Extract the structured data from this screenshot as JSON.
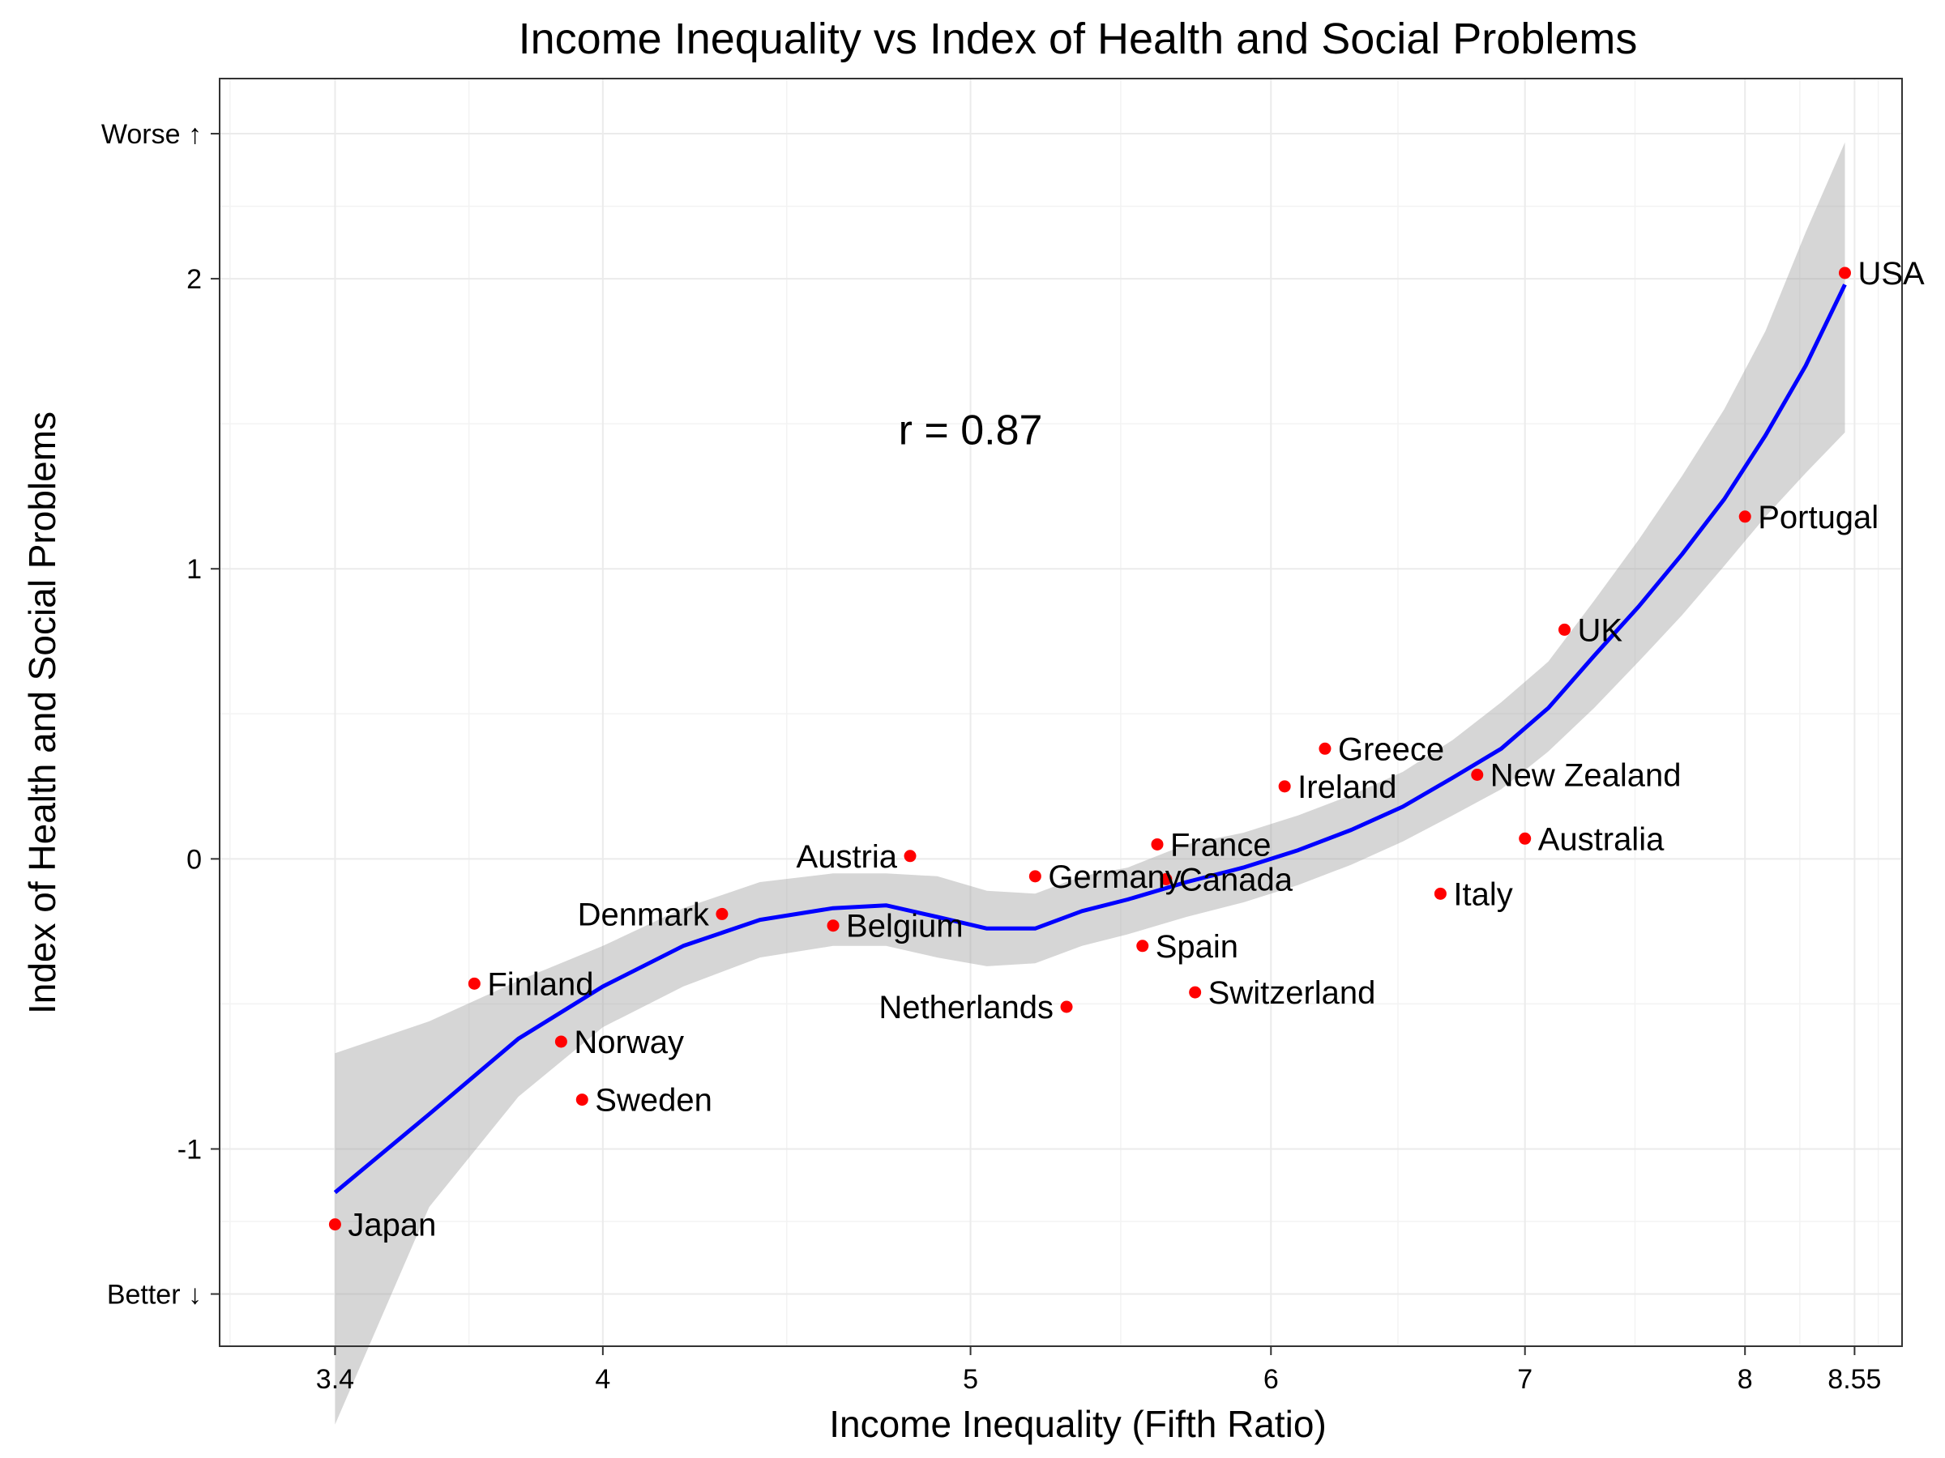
{
  "chart_data": {
    "type": "scatter",
    "title": "Income Inequality vs Index of Health and Social Problems",
    "xlabel": "Income Inequality (Fifth Ratio)",
    "ylabel": "Index of Health and Social Problems",
    "xlim": [
      3.17,
      8.8
    ],
    "ylim": [
      -1.68,
      2.69
    ],
    "x_scale": "log",
    "x_ticks": [
      {
        "value": 3.4,
        "label": "3.4"
      },
      {
        "value": 4,
        "label": "4"
      },
      {
        "value": 5,
        "label": "5"
      },
      {
        "value": 6,
        "label": "6"
      },
      {
        "value": 7,
        "label": "7"
      },
      {
        "value": 8,
        "label": "8"
      },
      {
        "value": 8.55,
        "label": "8.55"
      }
    ],
    "y_ticks": [
      {
        "value": -1.5,
        "label": "Better ↓"
      },
      {
        "value": -1,
        "label": "-1"
      },
      {
        "value": 0,
        "label": "0"
      },
      {
        "value": 1,
        "label": "1"
      },
      {
        "value": 2,
        "label": "2"
      },
      {
        "value": 2.5,
        "label": "Worse ↑"
      }
    ],
    "grid": true,
    "point_color": "#ff0000",
    "points": [
      {
        "label": "Japan",
        "x": 3.4,
        "y": -1.26,
        "anchor": "start"
      },
      {
        "label": "Finland",
        "x": 3.7,
        "y": -0.43,
        "anchor": "start"
      },
      {
        "label": "Norway",
        "x": 3.9,
        "y": -0.63,
        "anchor": "start"
      },
      {
        "label": "Sweden",
        "x": 3.95,
        "y": -0.83,
        "anchor": "start"
      },
      {
        "label": "Denmark",
        "x": 4.3,
        "y": -0.19,
        "anchor": "end"
      },
      {
        "label": "Belgium",
        "x": 4.6,
        "y": -0.23,
        "anchor": "start"
      },
      {
        "label": "Austria",
        "x": 4.82,
        "y": 0.01,
        "anchor": "end"
      },
      {
        "label": "Germany",
        "x": 5.2,
        "y": -0.06,
        "anchor": "start"
      },
      {
        "label": "Netherlands",
        "x": 5.3,
        "y": -0.51,
        "anchor": "end"
      },
      {
        "label": "Spain",
        "x": 5.55,
        "y": -0.3,
        "anchor": "start"
      },
      {
        "label": "France",
        "x": 5.6,
        "y": 0.05,
        "anchor": "start"
      },
      {
        "label": "Canada",
        "x": 5.63,
        "y": -0.07,
        "anchor": "start"
      },
      {
        "label": "Switzerland",
        "x": 5.73,
        "y": -0.46,
        "anchor": "start"
      },
      {
        "label": "Ireland",
        "x": 6.05,
        "y": 0.25,
        "anchor": "start"
      },
      {
        "label": "Greece",
        "x": 6.2,
        "y": 0.38,
        "anchor": "start"
      },
      {
        "label": "Italy",
        "x": 6.65,
        "y": -0.12,
        "anchor": "start"
      },
      {
        "label": "New Zealand",
        "x": 6.8,
        "y": 0.29,
        "anchor": "start"
      },
      {
        "label": "Australia",
        "x": 7.0,
        "y": 0.07,
        "anchor": "start"
      },
      {
        "label": "UK",
        "x": 7.17,
        "y": 0.79,
        "anchor": "start"
      },
      {
        "label": "Portugal",
        "x": 8.0,
        "y": 1.18,
        "anchor": "start"
      },
      {
        "label": "USA",
        "x": 8.5,
        "y": 2.02,
        "anchor": "start"
      }
    ],
    "smooth_color": "#0000ff",
    "smooth": {
      "x": [
        3.4,
        3.6,
        3.8,
        4.0,
        4.2,
        4.4,
        4.6,
        4.75,
        4.9,
        5.05,
        5.2,
        5.35,
        5.5,
        5.7,
        5.9,
        6.1,
        6.3,
        6.5,
        6.7,
        6.9,
        7.1,
        7.3,
        7.5,
        7.7,
        7.9,
        8.1,
        8.3,
        8.5
      ],
      "y": [
        -1.15,
        -0.88,
        -0.62,
        -0.44,
        -0.3,
        -0.21,
        -0.17,
        -0.16,
        -0.2,
        -0.24,
        -0.24,
        -0.18,
        -0.14,
        -0.08,
        -0.03,
        0.03,
        0.1,
        0.18,
        0.28,
        0.38,
        0.52,
        0.7,
        0.87,
        1.05,
        1.24,
        1.46,
        1.7,
        1.98
      ],
      "ci_low": [
        -1.95,
        -1.2,
        -0.82,
        -0.58,
        -0.44,
        -0.34,
        -0.3,
        -0.3,
        -0.34,
        -0.37,
        -0.36,
        -0.3,
        -0.26,
        -0.2,
        -0.15,
        -0.09,
        -0.02,
        0.06,
        0.15,
        0.24,
        0.37,
        0.52,
        0.68,
        0.84,
        1.01,
        1.18,
        1.33,
        1.47
      ],
      "ci_high": [
        -0.67,
        -0.56,
        -0.42,
        -0.3,
        -0.17,
        -0.08,
        -0.05,
        -0.05,
        -0.06,
        -0.11,
        -0.12,
        -0.06,
        -0.03,
        0.05,
        0.09,
        0.15,
        0.22,
        0.3,
        0.41,
        0.54,
        0.68,
        0.89,
        1.1,
        1.32,
        1.55,
        1.82,
        2.16,
        2.47
      ]
    },
    "annotations": [
      {
        "text": "r = 0.87",
        "x": 5.0,
        "y": 1.48
      }
    ]
  }
}
